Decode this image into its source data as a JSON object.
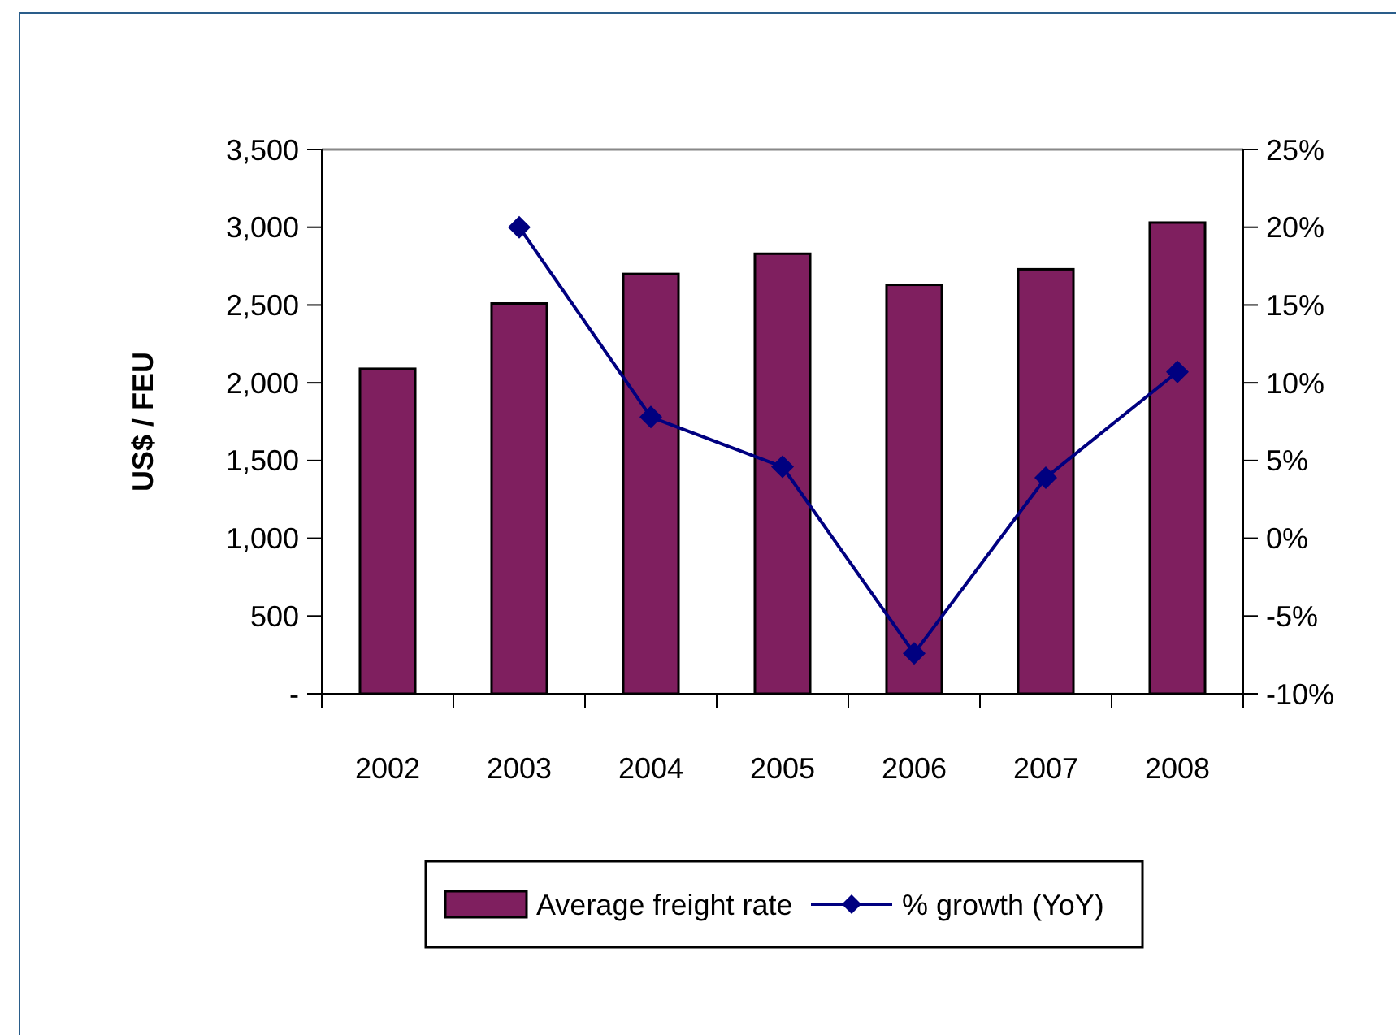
{
  "chart_data": {
    "type": "bar",
    "ylabel": "US$ / FEU",
    "categories": [
      "2002",
      "2003",
      "2004",
      "2005",
      "2006",
      "2007",
      "2008"
    ],
    "series": [
      {
        "name": "Average freight rate",
        "color": "#7f1f5f",
        "values": [
          2090,
          2510,
          2700,
          2830,
          2630,
          2730,
          3030
        ]
      },
      {
        "name": "% growth (YoY)",
        "type": "line",
        "axis": "y2",
        "color": "#000080",
        "marker": "diamond",
        "values": [
          null,
          20.0,
          7.8,
          4.6,
          -7.4,
          3.9,
          10.7
        ]
      }
    ],
    "ylim": [
      0,
      3500
    ],
    "yticks": [
      {
        "value": 0,
        "label": "-"
      },
      {
        "value": 500,
        "label": "500"
      },
      {
        "value": 1000,
        "label": "1,000"
      },
      {
        "value": 1500,
        "label": "1,500"
      },
      {
        "value": 2000,
        "label": "2,000"
      },
      {
        "value": 2500,
        "label": "2,500"
      },
      {
        "value": 3000,
        "label": "3,000"
      },
      {
        "value": 3500,
        "label": "3,500"
      }
    ],
    "y2lim": [
      -10,
      25
    ],
    "y2ticks": [
      {
        "value": -10,
        "label": "-10%"
      },
      {
        "value": -5,
        "label": "-5%"
      },
      {
        "value": 0,
        "label": "0%"
      },
      {
        "value": 5,
        "label": "5%"
      },
      {
        "value": 10,
        "label": "10%"
      },
      {
        "value": 15,
        "label": "15%"
      },
      {
        "value": 20,
        "label": "20%"
      },
      {
        "value": 25,
        "label": "25%"
      }
    ],
    "legend": "bottom",
    "grid": false
  }
}
